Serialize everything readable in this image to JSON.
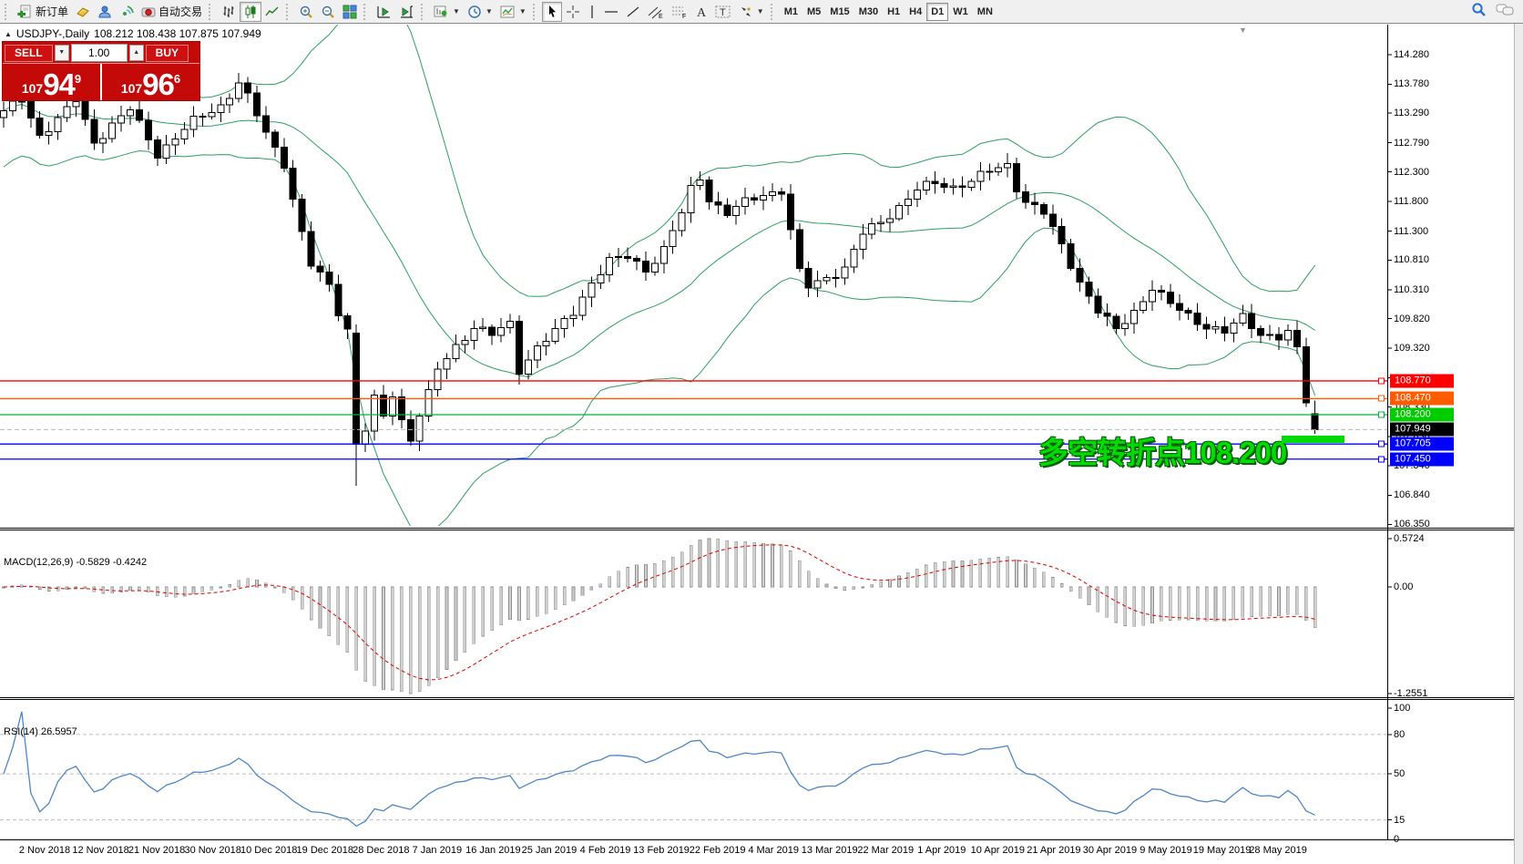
{
  "toolbar": {
    "groups": [
      {
        "items": [
          {
            "name": "new-order-button",
            "icon": "new-order-icon",
            "label": "新订单"
          },
          {
            "name": "open-account-button",
            "icon": "gold-ingot-icon"
          },
          {
            "name": "community-button",
            "icon": "community-icon"
          },
          {
            "name": "signals-button",
            "icon": "signals-icon"
          },
          {
            "name": "autotrading-button",
            "icon": "autotrading-icon",
            "label": "自动交易"
          }
        ]
      },
      {
        "items": [
          {
            "name": "bar-chart-button",
            "icon": "bar-chart-icon"
          },
          {
            "name": "candlestick-chart-button",
            "icon": "candlestick-chart-icon",
            "selected": true
          },
          {
            "name": "line-chart-button",
            "icon": "line-chart-icon"
          }
        ]
      },
      {
        "items": [
          {
            "name": "zoom-in-button",
            "icon": "zoom-in-icon"
          },
          {
            "name": "zoom-out-button",
            "icon": "zoom-out-icon"
          },
          {
            "name": "tile-windows-button",
            "icon": "tile-windows-icon"
          }
        ]
      },
      {
        "items": [
          {
            "name": "auto-scroll-button",
            "icon": "auto-scroll-icon"
          },
          {
            "name": "chart-shift-button",
            "icon": "chart-shift-icon"
          }
        ]
      },
      {
        "items": [
          {
            "name": "new-chart-button",
            "icon": "new-chart-icon",
            "caret": true
          },
          {
            "name": "profiles-button",
            "icon": "profiles-icon",
            "caret": true
          },
          {
            "name": "indicators-button",
            "icon": "indicators-icon",
            "caret": true
          }
        ]
      },
      {
        "items": [
          {
            "name": "cursor-button",
            "icon": "cursor-icon",
            "selected": true
          },
          {
            "name": "crosshair-button",
            "icon": "crosshair-icon"
          },
          {
            "name": "vertical-line-button",
            "icon": "vertical-line-icon"
          },
          {
            "name": "horizontal-line-button",
            "icon": "horizontal-line-icon"
          },
          {
            "name": "trendline-button",
            "icon": "trendline-icon"
          },
          {
            "name": "equidistant-channel-button",
            "icon": "equidistant-channel-icon"
          },
          {
            "name": "fibonacci-button",
            "icon": "fibonacci-icon"
          },
          {
            "name": "text-button",
            "icon": "text-icon"
          },
          {
            "name": "text-label-button",
            "icon": "text-label-icon"
          },
          {
            "name": "arrows-button",
            "icon": "arrows-icon",
            "caret": true
          }
        ]
      }
    ],
    "timeframes": [
      "M1",
      "M5",
      "M15",
      "M30",
      "H1",
      "H4",
      "D1",
      "W1",
      "MN"
    ],
    "selected_timeframe": "D1"
  },
  "header": {
    "collapse_glyph": "▲",
    "symbol": "USDJPY-,Daily",
    "ohlc_text": "108.212 108.438 107.875 107.949"
  },
  "trade_panel": {
    "sell_label": "SELL",
    "buy_label": "BUY",
    "volume": "1.00",
    "sell_price": {
      "prefix": "107",
      "big": "94",
      "sup": "9"
    },
    "buy_price": {
      "prefix": "107",
      "big": "96",
      "sup": "6"
    }
  },
  "annotation": {
    "text": "多空转折点108.200",
    "color": "#00dc00"
  },
  "colors": {
    "bollinger": "#2f9e63",
    "macd_hist_fill": "#d0d0d0",
    "macd_hist_stroke": "#8f8f8f",
    "macd_signal": "#e00000",
    "rsi_line": "#4f86c6",
    "level_dash": "#bdbdbd",
    "panel_red": "#c40909"
  },
  "price_axis": {
    "ticks": [
      "114.280",
      "113.780",
      "113.290",
      "112.790",
      "112.300",
      "111.800",
      "111.300",
      "110.810",
      "110.310",
      "109.820",
      "109.320",
      "108.820",
      "108.330",
      "107.830",
      "107.340",
      "106.840",
      "106.350"
    ],
    "tick_values": [
      114.28,
      113.78,
      113.29,
      112.79,
      112.3,
      111.8,
      111.3,
      110.81,
      110.31,
      109.82,
      109.32,
      108.82,
      108.33,
      107.83,
      107.34,
      106.84,
      106.35
    ]
  },
  "hlines": [
    {
      "label": "108.770",
      "price": 108.77,
      "color": "#ff0000",
      "label_bg": "#ff0000",
      "dashed": false,
      "marker": true
    },
    {
      "label": "108.470",
      "price": 108.47,
      "color": "#ff5c00",
      "label_bg": "#ff5c00",
      "dashed": false,
      "marker": true
    },
    {
      "label": "108.200",
      "price": 108.2,
      "color": "#00b43c",
      "label_bg": "#00cc00",
      "dashed": false,
      "marker": true
    },
    {
      "label": "107.949",
      "price": 107.949,
      "color": "#b8b8b8",
      "label_bg": "#000000",
      "dashed": true,
      "marker": false
    },
    {
      "label": "107.705",
      "price": 107.705,
      "color": "#0000ff",
      "label_bg": "#0000ff",
      "dashed": false,
      "marker": true
    },
    {
      "label": "107.450",
      "price": 107.45,
      "color": "#0000ff",
      "label_bg": "#0000ff",
      "dashed": false,
      "marker": true
    }
  ],
  "macd_panel": {
    "label": "MACD(12,26,9) -0.5829 -0.4242",
    "ticks": [
      {
        "text": "0.5724",
        "value": 0.5724
      },
      {
        "text": "0.00",
        "value": 0
      },
      {
        "text": "-1.2551",
        "value": -1.2551
      }
    ],
    "current_macd": -0.5829,
    "current_signal": -0.4242
  },
  "rsi_panel": {
    "label": "RSI(14) 26.5957",
    "ticks": [
      {
        "text": "100",
        "value": 100
      },
      {
        "text": "80",
        "value": 80
      },
      {
        "text": "50",
        "value": 50
      },
      {
        "text": "15",
        "value": 15
      },
      {
        "text": "0",
        "value": 0
      }
    ],
    "levels": [
      80,
      50,
      15
    ],
    "current_rsi": 26.5957
  },
  "date_axis": [
    "2 Nov 2018",
    "12 Nov 2018",
    "21 Nov 2018",
    "30 Nov 2018",
    "10 Dec 2018",
    "19 Dec 2018",
    "28 Dec 2018",
    "7 Jan 2019",
    "16 Jan 2019",
    "25 Jan 2019",
    "4 Feb 2019",
    "13 Feb 2019",
    "22 Feb 2019",
    "4 Mar 2019",
    "13 Mar 2019",
    "22 Mar 2019",
    "1 Apr 2019",
    "10 Apr 2019",
    "21 Apr 2019",
    "30 Apr 2019",
    "9 May 2019",
    "19 May 2019",
    "28 May 2019"
  ],
  "status_icons": {
    "search": "search-icon",
    "chat": "chat-icon"
  },
  "chart_data": {
    "type": "candlestick",
    "symbol": "USDJPY",
    "timeframe": "Daily",
    "current_bar_ohlc": {
      "open": 108.212,
      "high": 108.438,
      "low": 107.875,
      "close": 107.949
    },
    "price_range_top": 114.79,
    "price_range_bottom": 106.33,
    "bars_total": 146,
    "indicators": [
      {
        "name": "Bollinger Bands",
        "period": 20,
        "deviation": 2
      },
      {
        "name": "MACD",
        "fast": 12,
        "slow": 26,
        "signal": 9,
        "value": -0.5829,
        "signal_value": -0.4242,
        "scale_max": 0.5724,
        "scale_min": -1.2551
      },
      {
        "name": "RSI",
        "period": 14,
        "value": 26.5957,
        "scale": [
          0,
          100
        ]
      }
    ],
    "horizontal_levels": [
      108.77,
      108.47,
      108.2,
      107.949,
      107.705,
      107.45
    ],
    "close_anchors": [
      [
        0,
        113.3
      ],
      [
        2,
        113.52
      ],
      [
        4,
        112.92
      ],
      [
        6,
        113.18
      ],
      [
        8,
        113.5
      ],
      [
        10,
        112.8
      ],
      [
        12,
        113.1
      ],
      [
        14,
        113.35
      ],
      [
        17,
        112.6
      ],
      [
        19,
        112.88
      ],
      [
        21,
        113.15
      ],
      [
        24,
        113.42
      ],
      [
        26,
        113.8
      ],
      [
        27,
        113.55
      ],
      [
        29,
        112.95
      ],
      [
        31,
        112.45
      ],
      [
        32,
        111.85
      ],
      [
        33,
        111.25
      ],
      [
        34,
        110.72
      ],
      [
        36,
        110.38
      ],
      [
        37,
        109.95
      ],
      [
        38,
        109.65
      ],
      [
        39,
        107.7
      ],
      [
        40,
        107.95
      ],
      [
        41,
        108.45
      ],
      [
        42,
        108.15
      ],
      [
        43,
        108.55
      ],
      [
        44,
        108.1
      ],
      [
        45,
        107.8
      ],
      [
        46,
        108.22
      ],
      [
        47,
        108.55
      ],
      [
        48,
        108.95
      ],
      [
        50,
        109.35
      ],
      [
        52,
        109.7
      ],
      [
        54,
        109.55
      ],
      [
        56,
        109.72
      ],
      [
        57,
        108.95
      ],
      [
        59,
        109.35
      ],
      [
        61,
        109.6
      ],
      [
        63,
        109.92
      ],
      [
        65,
        110.45
      ],
      [
        67,
        110.8
      ],
      [
        69,
        110.85
      ],
      [
        71,
        110.65
      ],
      [
        73,
        111.0
      ],
      [
        75,
        111.6
      ],
      [
        76,
        112.0
      ],
      [
        77,
        112.2
      ],
      [
        78,
        111.85
      ],
      [
        80,
        111.6
      ],
      [
        82,
        111.78
      ],
      [
        84,
        111.92
      ],
      [
        86,
        112.0
      ],
      [
        87,
        111.3
      ],
      [
        88,
        110.6
      ],
      [
        89,
        110.35
      ],
      [
        91,
        110.52
      ],
      [
        93,
        110.68
      ],
      [
        95,
        111.25
      ],
      [
        97,
        111.45
      ],
      [
        99,
        111.72
      ],
      [
        101,
        112.0
      ],
      [
        103,
        112.1
      ],
      [
        105,
        112.05
      ],
      [
        107,
        112.15
      ],
      [
        109,
        112.3
      ],
      [
        111,
        112.42
      ],
      [
        112,
        112.05
      ],
      [
        113,
        111.8
      ],
      [
        115,
        111.6
      ],
      [
        117,
        111.05
      ],
      [
        119,
        110.45
      ],
      [
        121,
        109.95
      ],
      [
        123,
        109.62
      ],
      [
        125,
        109.95
      ],
      [
        127,
        110.35
      ],
      [
        129,
        110.05
      ],
      [
        131,
        109.88
      ],
      [
        133,
        109.7
      ],
      [
        135,
        109.58
      ],
      [
        137,
        109.85
      ],
      [
        139,
        109.58
      ],
      [
        141,
        109.5
      ],
      [
        142,
        109.62
      ],
      [
        143,
        109.35
      ],
      [
        144,
        108.4
      ],
      [
        145,
        107.949
      ]
    ],
    "bar_overrides": {
      "26": {
        "h": 113.97
      },
      "39": {
        "o": 109.58,
        "h": 109.72,
        "l": 107.0
      },
      "144": {
        "o": 109.35,
        "h": 109.5,
        "l": 108.33
      },
      "145": {
        "o": 108.212,
        "h": 108.438,
        "l": 107.875
      }
    }
  }
}
